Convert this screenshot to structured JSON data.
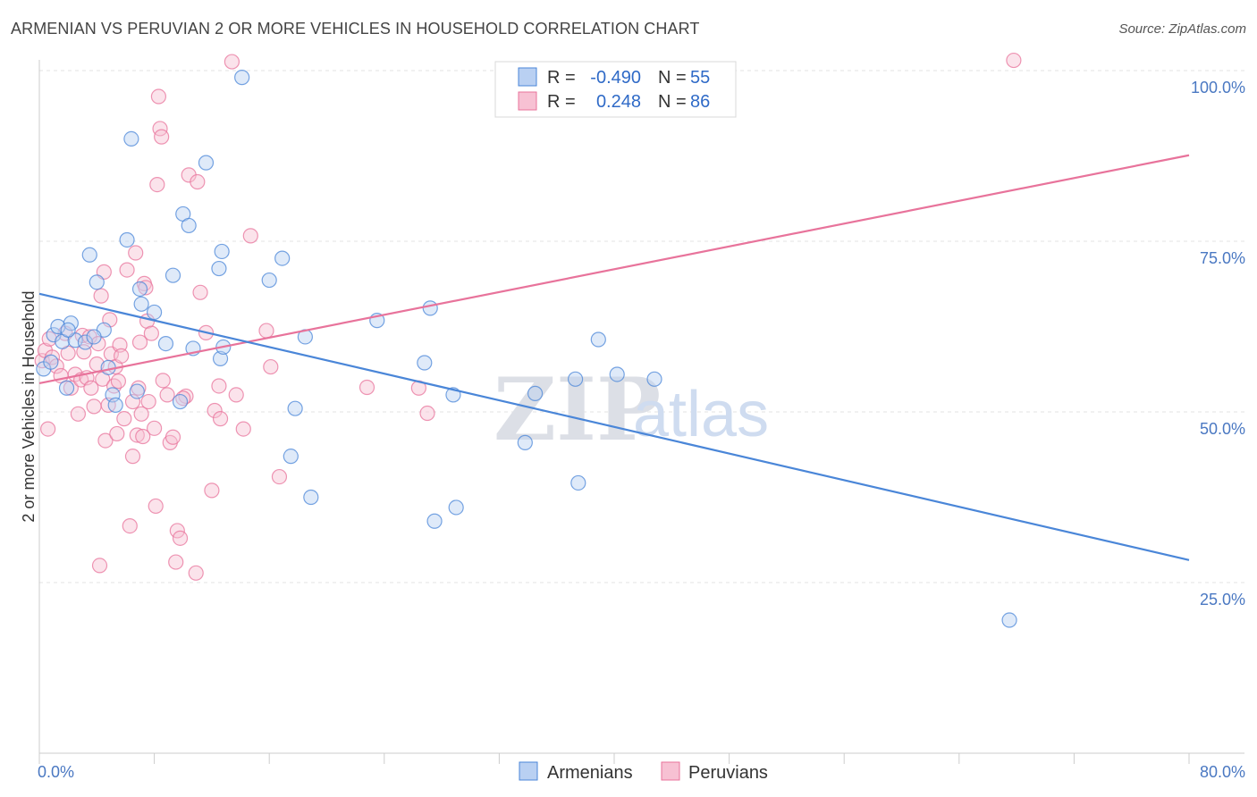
{
  "title": "ARMENIAN VS PERUVIAN 2 OR MORE VEHICLES IN HOUSEHOLD CORRELATION CHART",
  "source": "Source: ZipAtlas.com",
  "colors": {
    "armenian": "#4a86d8",
    "armenian_fill": "#b9d0f2",
    "peruvian": "#e8739b",
    "peruvian_fill": "#f7c1d3",
    "tick": "#4a78c2"
  },
  "legend": {
    "rows": [
      {
        "r_label": "R =",
        "r_value": "-0.490",
        "n_label": "N =",
        "n_value": "55"
      },
      {
        "r_label": "R =",
        "r_value": "0.248",
        "n_label": "N =",
        "n_value": "86"
      }
    ]
  },
  "bottom_legend": {
    "armenians": "Armenians",
    "peruvians": "Peruvians"
  },
  "watermark": {
    "zip": "ZIP",
    "atlas": "atlas"
  },
  "chart_data": {
    "type": "scatter",
    "title": "ARMENIAN VS PERUVIAN 2 OR MORE VEHICLES IN HOUSEHOLD CORRELATION CHART",
    "xlabel": "",
    "ylabel": "2 or more Vehicles in Household",
    "xlim": [
      0,
      80
    ],
    "ylim": [
      0,
      102
    ],
    "x_tick_labels": [
      "0.0%",
      "80.0%"
    ],
    "y_ticks": [
      25,
      50,
      75,
      100
    ],
    "y_tick_labels": [
      "25.0%",
      "50.0%",
      "75.0%",
      "100.0%"
    ],
    "series": [
      {
        "name": "Armenians",
        "r": -0.49,
        "n": 55,
        "trend": {
          "x": [
            0,
            80
          ],
          "y": [
            67.3,
            28.3
          ]
        },
        "points": [
          [
            0.3,
            56.3
          ],
          [
            0.8,
            57.3
          ],
          [
            1.0,
            61.3
          ],
          [
            1.3,
            62.5
          ],
          [
            1.6,
            60.3
          ],
          [
            1.9,
            53.5
          ],
          [
            2.2,
            63.0
          ],
          [
            2.5,
            60.5
          ],
          [
            3.2,
            60.2
          ],
          [
            3.5,
            73.0
          ],
          [
            4.0,
            69.0
          ],
          [
            4.5,
            62.0
          ],
          [
            4.8,
            56.5
          ],
          [
            5.1,
            52.5
          ],
          [
            5.3,
            51.0
          ],
          [
            6.1,
            75.2
          ],
          [
            6.4,
            90.0
          ],
          [
            6.8,
            53.0
          ],
          [
            7.0,
            68.0
          ],
          [
            7.1,
            65.8
          ],
          [
            8.0,
            64.6
          ],
          [
            8.8,
            60.0
          ],
          [
            9.3,
            70.0
          ],
          [
            9.8,
            51.5
          ],
          [
            10.0,
            79.0
          ],
          [
            10.4,
            77.3
          ],
          [
            10.7,
            59.3
          ],
          [
            11.6,
            86.5
          ],
          [
            12.6,
            57.8
          ],
          [
            12.8,
            59.5
          ],
          [
            12.5,
            71.0
          ],
          [
            12.7,
            73.5
          ],
          [
            14.1,
            99.0
          ],
          [
            16.0,
            69.3
          ],
          [
            16.9,
            72.5
          ],
          [
            17.5,
            43.5
          ],
          [
            17.8,
            50.5
          ],
          [
            18.9,
            37.5
          ],
          [
            18.5,
            61.0
          ],
          [
            23.5,
            63.4
          ],
          [
            26.8,
            57.2
          ],
          [
            27.2,
            65.2
          ],
          [
            27.5,
            34.0
          ],
          [
            28.8,
            52.5
          ],
          [
            29.0,
            36.0
          ],
          [
            33.8,
            45.5
          ],
          [
            34.5,
            52.7
          ],
          [
            37.3,
            54.8
          ],
          [
            37.5,
            39.6
          ],
          [
            38.9,
            60.6
          ],
          [
            40.2,
            55.5
          ],
          [
            42.8,
            54.8
          ],
          [
            67.5,
            19.5
          ],
          [
            2.0,
            62.0
          ],
          [
            3.8,
            61.0
          ]
        ]
      },
      {
        "name": "Peruvians",
        "r": 0.248,
        "n": 86,
        "trend": {
          "x": [
            0,
            80
          ],
          "y": [
            54.2,
            87.6
          ]
        },
        "points": [
          [
            0.2,
            57.5
          ],
          [
            0.4,
            59.0
          ],
          [
            0.6,
            47.5
          ],
          [
            0.7,
            60.7
          ],
          [
            0.9,
            58.0
          ],
          [
            1.2,
            56.7
          ],
          [
            1.5,
            55.3
          ],
          [
            1.8,
            61.5
          ],
          [
            2.0,
            58.6
          ],
          [
            2.2,
            53.5
          ],
          [
            2.5,
            55.5
          ],
          [
            2.7,
            49.7
          ],
          [
            2.9,
            54.7
          ],
          [
            3.0,
            61.2
          ],
          [
            3.3,
            55.0
          ],
          [
            3.5,
            61.0
          ],
          [
            3.6,
            53.5
          ],
          [
            3.8,
            50.8
          ],
          [
            4.0,
            57.0
          ],
          [
            4.1,
            60.0
          ],
          [
            4.3,
            67.0
          ],
          [
            4.4,
            54.8
          ],
          [
            4.5,
            70.5
          ],
          [
            4.6,
            45.8
          ],
          [
            4.8,
            51.0
          ],
          [
            4.9,
            63.5
          ],
          [
            5.0,
            58.5
          ],
          [
            5.2,
            53.8
          ],
          [
            5.3,
            56.6
          ],
          [
            5.5,
            54.5
          ],
          [
            5.6,
            59.8
          ],
          [
            5.7,
            58.2
          ],
          [
            5.9,
            49.0
          ],
          [
            6.1,
            70.8
          ],
          [
            6.3,
            33.3
          ],
          [
            6.5,
            43.5
          ],
          [
            6.7,
            73.3
          ],
          [
            6.8,
            46.6
          ],
          [
            6.9,
            53.5
          ],
          [
            7.0,
            60.2
          ],
          [
            7.1,
            49.7
          ],
          [
            7.3,
            68.8
          ],
          [
            7.4,
            68.2
          ],
          [
            7.5,
            63.3
          ],
          [
            7.6,
            51.5
          ],
          [
            7.8,
            61.5
          ],
          [
            8.0,
            47.6
          ],
          [
            8.1,
            36.2
          ],
          [
            8.2,
            83.3
          ],
          [
            8.3,
            96.2
          ],
          [
            8.4,
            91.5
          ],
          [
            8.5,
            90.3
          ],
          [
            8.6,
            54.6
          ],
          [
            8.9,
            52.5
          ],
          [
            9.1,
            45.5
          ],
          [
            9.3,
            46.3
          ],
          [
            9.6,
            32.6
          ],
          [
            9.8,
            31.5
          ],
          [
            10.2,
            52.3
          ],
          [
            10.4,
            84.7
          ],
          [
            10.9,
            26.4
          ],
          [
            11.0,
            83.7
          ],
          [
            11.2,
            67.5
          ],
          [
            11.6,
            61.6
          ],
          [
            12.0,
            38.5
          ],
          [
            12.2,
            50.2
          ],
          [
            12.5,
            53.8
          ],
          [
            12.6,
            49.0
          ],
          [
            13.4,
            101.3
          ],
          [
            13.7,
            52.5
          ],
          [
            14.2,
            47.5
          ],
          [
            14.7,
            75.8
          ],
          [
            15.8,
            61.9
          ],
          [
            16.1,
            56.6
          ],
          [
            16.7,
            40.5
          ],
          [
            22.8,
            53.6
          ],
          [
            26.4,
            53.5
          ],
          [
            27.0,
            49.8
          ],
          [
            67.8,
            101.5
          ],
          [
            4.2,
            27.5
          ],
          [
            9.5,
            28.0
          ],
          [
            5.4,
            46.8
          ],
          [
            7.2,
            46.4
          ],
          [
            10.0,
            52.0
          ],
          [
            6.5,
            51.5
          ],
          [
            3.1,
            58.8
          ]
        ]
      }
    ]
  }
}
